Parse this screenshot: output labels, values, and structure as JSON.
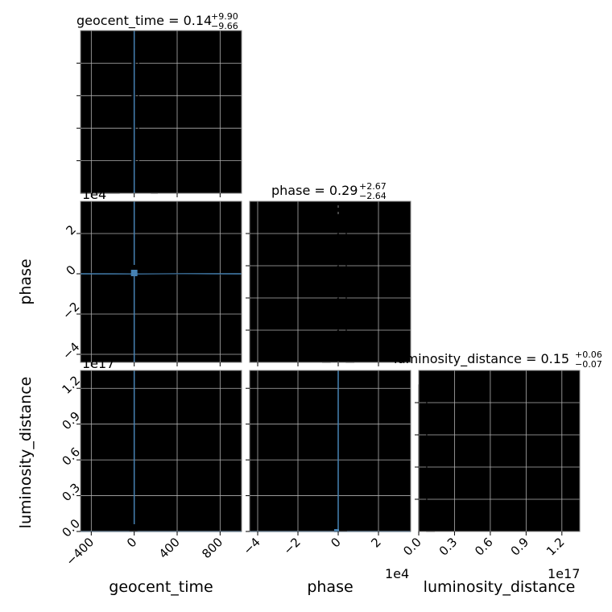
{
  "chart_data": {
    "type": "corner",
    "parameters": [
      "geocent_time",
      "phase",
      "luminosity_distance"
    ],
    "titles": {
      "geocent_time": {
        "name": "geocent_time",
        "value": "0.14",
        "plus": "+9.90",
        "minus": "−9.66"
      },
      "phase": {
        "name": "phase",
        "value": "0.29",
        "plus": "+2.67",
        "minus": "−2.64"
      },
      "luminosity_distance": {
        "name": "luminosity_distance",
        "value": "0.15",
        "plus": "+0.06",
        "minus": "−0.07"
      }
    },
    "axis_labels": {
      "x": [
        "geocent_time",
        "phase",
        "luminosity_distance"
      ],
      "y": [
        "phase",
        "luminosity_distance"
      ]
    },
    "multipliers": {
      "phase_y": "1e4",
      "phase_x": "1e4",
      "lumdist_y": "1e17",
      "lumdist_x": "1e17",
      "hist_top": "1e4"
    },
    "ranges": {
      "geocent_time": [
        -500,
        1000
      ],
      "phase": [
        -4.4,
        3.6
      ],
      "luminosity_distance": [
        0.0,
        1.35
      ]
    },
    "ticks": {
      "geocent_time": [
        "−400",
        "0",
        "400",
        "800"
      ],
      "geocent_time_values": [
        -400,
        0,
        400,
        800
      ],
      "phase": [
        "−4",
        "−2",
        "0",
        "2"
      ],
      "phase_values": [
        -4,
        -2,
        0,
        2
      ],
      "luminosity_distance": [
        "0.0",
        "0.3",
        "0.6",
        "0.9",
        "1.2"
      ],
      "luminosity_distance_values": [
        0.0,
        0.3,
        0.6,
        0.9,
        1.2
      ]
    },
    "truths": {
      "geocent_time": 0,
      "phase": 0,
      "luminosity_distance": 0
    },
    "histograms": {
      "geocent_time": {
        "edges": [
          -500,
          -440,
          -380,
          -320,
          -260,
          -200,
          -140,
          -80,
          -20,
          40,
          100,
          160,
          220
        ],
        "counts": [
          0,
          0,
          0,
          0,
          0,
          0,
          0.02,
          0.03,
          1.0,
          0.08,
          0.01,
          0
        ]
      },
      "phase": {
        "edges": [
          -0.8,
          -0.4,
          0,
          0.4,
          0.8
        ],
        "counts": [
          0,
          0.01,
          1.0,
          0
        ]
      },
      "luminosity_distance": {
        "edges": [
          0.0,
          0.067,
          0.134
        ],
        "counts": [
          1.0,
          0
        ]
      }
    },
    "grid": true,
    "color": "#4682b4"
  }
}
